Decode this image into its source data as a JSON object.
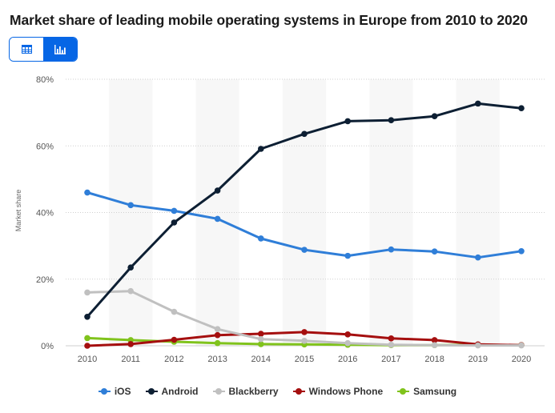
{
  "title": "Market share of leading mobile operating systems in Europe from 2010 to 2020",
  "view_toggle": {
    "table_icon": "table-icon",
    "chart_icon": "bar-chart-icon",
    "active": "chart"
  },
  "chart_data": {
    "type": "line",
    "title": "Market share of leading mobile operating systems in Europe from 2010 to 2020",
    "ylabel": "Market share",
    "xlabel": "",
    "x": [
      "2010",
      "2011",
      "2012",
      "2013",
      "2014",
      "2015",
      "2016",
      "2017",
      "2018",
      "2019",
      "2020"
    ],
    "ylim": [
      0,
      80
    ],
    "yticks": [
      "0%",
      "20%",
      "40%",
      "60%",
      "80%"
    ],
    "ytick_values": [
      0,
      20,
      40,
      60,
      80
    ],
    "grid": "horizontal dotted",
    "legend_position": "bottom",
    "series": [
      {
        "name": "iOS",
        "color": "#2f7ed8",
        "values": [
          46.0,
          42.2,
          40.5,
          38.1,
          32.2,
          28.8,
          27.0,
          28.9,
          28.3,
          26.5,
          28.4
        ]
      },
      {
        "name": "Android",
        "color": "#0d1f33",
        "values": [
          8.7,
          23.5,
          37.0,
          46.6,
          59.1,
          63.6,
          67.4,
          67.7,
          68.9,
          72.7,
          71.3
        ]
      },
      {
        "name": "Blackberry",
        "color": "#c0c0c0",
        "values": [
          16.0,
          16.4,
          10.2,
          5.0,
          2.0,
          1.5,
          0.8,
          0.3,
          0.2,
          0.1,
          0.1
        ]
      },
      {
        "name": "Windows Phone",
        "color": "#a50f0f",
        "values": [
          0.0,
          0.5,
          1.8,
          3.2,
          3.6,
          4.1,
          3.4,
          2.2,
          1.7,
          0.4,
          0.2
        ]
      },
      {
        "name": "Samsung",
        "color": "#80c31c",
        "values": [
          2.3,
          1.7,
          1.2,
          0.8,
          0.5,
          0.4,
          0.3,
          0.2,
          0.2,
          0.3,
          0.2
        ]
      }
    ]
  }
}
